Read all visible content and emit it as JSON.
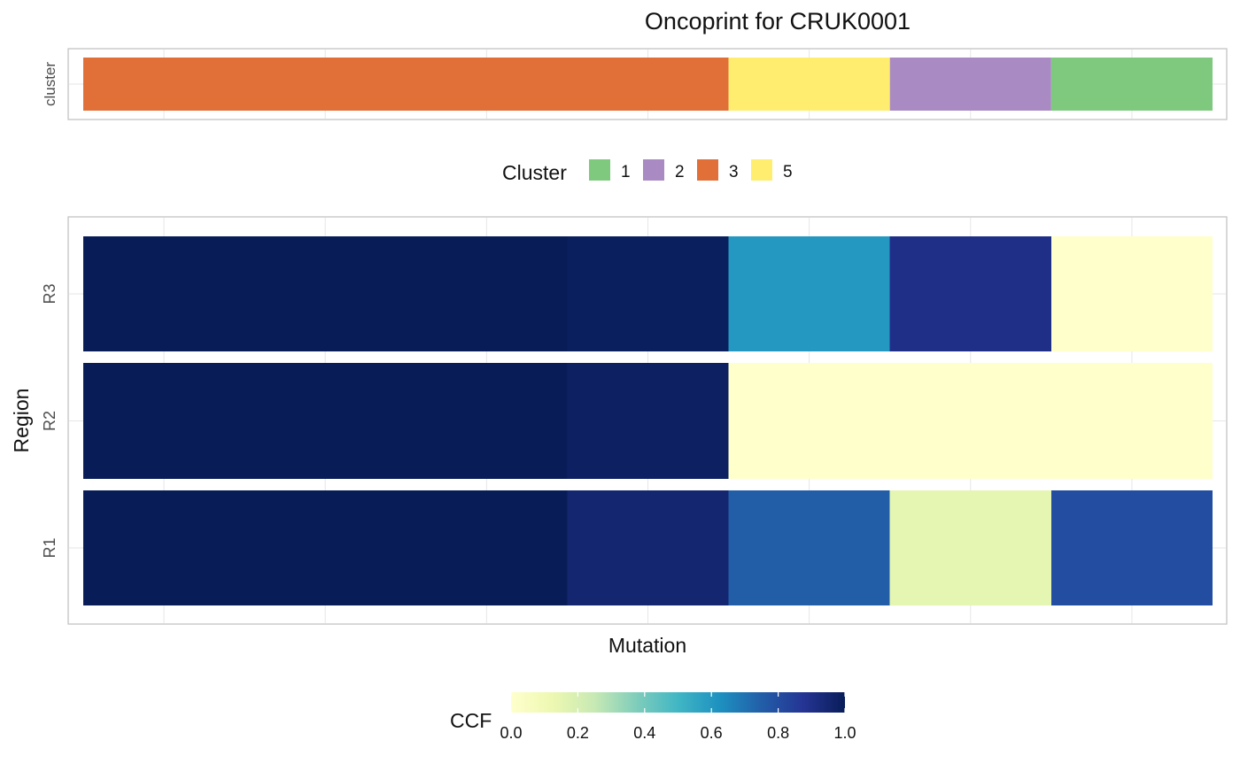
{
  "chart_data": {
    "type": "heatmap",
    "title": "Oncoprint for CRUK0001",
    "xlabel": "Mutation",
    "ylabel": "Region",
    "annotation": {
      "label": "cluster",
      "legend_title": "Cluster",
      "legend_entries": [
        "1",
        "2",
        "3",
        "5"
      ],
      "colors": {
        "1": "#7fc97f",
        "2": "#a98ac3",
        "3": "#e07038",
        "5": "#ffed70"
      },
      "segments": [
        {
          "cluster": "3",
          "start": 0,
          "end": 4
        },
        {
          "cluster": "5",
          "start": 4,
          "end": 5
        },
        {
          "cluster": "2",
          "start": 5,
          "end": 6
        },
        {
          "cluster": "1",
          "start": 6,
          "end": 7
        }
      ]
    },
    "total_mutations": 7,
    "rows": [
      "R1",
      "R2",
      "R3"
    ],
    "cells": {
      "R3": [
        {
          "start": 0,
          "end": 3,
          "ccf": 1.0
        },
        {
          "start": 3,
          "end": 4,
          "ccf": 0.99
        },
        {
          "start": 4,
          "end": 5,
          "ccf": 0.6
        },
        {
          "start": 5,
          "end": 6,
          "ccf": 0.9
        },
        {
          "start": 6,
          "end": 7,
          "ccf": 0.0
        }
      ],
      "R2": [
        {
          "start": 0,
          "end": 3,
          "ccf": 1.0
        },
        {
          "start": 3,
          "end": 4,
          "ccf": 0.98
        },
        {
          "start": 4,
          "end": 7,
          "ccf": 0.0
        }
      ],
      "R1": [
        {
          "start": 0,
          "end": 3,
          "ccf": 1.0
        },
        {
          "start": 3,
          "end": 4,
          "ccf": 0.95
        },
        {
          "start": 4,
          "end": 5,
          "ccf": 0.75
        },
        {
          "start": 5,
          "end": 6,
          "ccf": 0.15
        },
        {
          "start": 6,
          "end": 7,
          "ccf": 0.8
        }
      ]
    },
    "colorbar": {
      "title": "CCF",
      "ticks": [
        "0.0",
        "0.2",
        "0.4",
        "0.6",
        "0.8",
        "1.0"
      ],
      "range": [
        0,
        1
      ],
      "stops": [
        "#ffffcc",
        "#edf8b1",
        "#c7e9b4",
        "#7fcdbb",
        "#41b6c4",
        "#1d91c0",
        "#225ea8",
        "#253494",
        "#081d58"
      ]
    }
  }
}
